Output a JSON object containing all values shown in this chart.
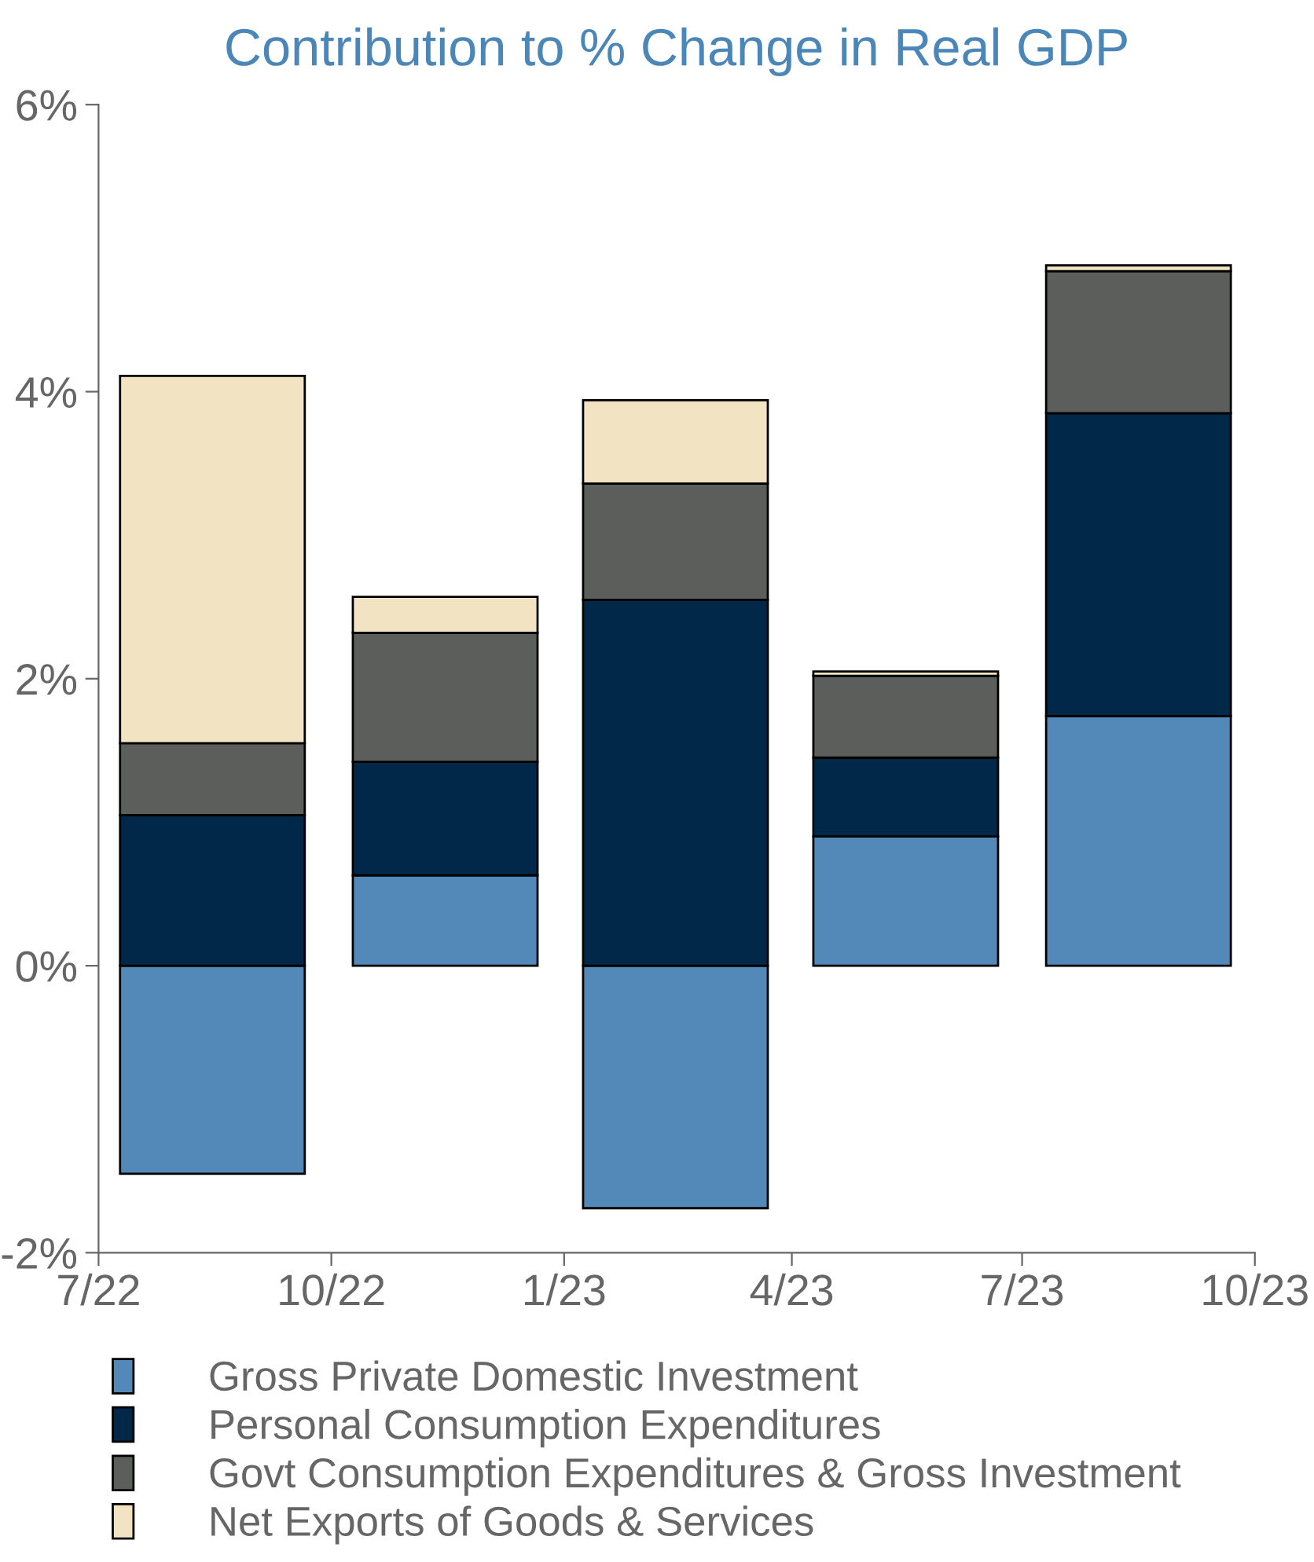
{
  "chart_data": {
    "type": "bar",
    "stacked": true,
    "title": "Contribution to % Change in Real GDP",
    "x": [
      "2022-08-15",
      "2022-11-15",
      "2023-02-14",
      "2023-05-16",
      "2023-08-16"
    ],
    "series": [
      {
        "name": "Gross Private Domestic Investment",
        "color": "#5289b8",
        "values": [
          -1.45,
          0.63,
          -1.69,
          0.9,
          1.74
        ]
      },
      {
        "name": "Personal Consumption Expenditures",
        "color": "#022849",
        "values": [
          1.05,
          0.79,
          2.55,
          0.55,
          2.11
        ]
      },
      {
        "name": "Govt Consumption Expenditures & Gross Investment",
        "color": "#5c5e5b",
        "values": [
          0.5,
          0.9,
          0.81,
          0.57,
          0.99
        ]
      },
      {
        "name": "Net Exports of Goods & Services",
        "color": "#f2e4c2",
        "values": [
          2.56,
          0.25,
          0.58,
          0.03,
          0.04
        ]
      }
    ],
    "xlim": [
      "2022-07-01",
      "2023-10-01"
    ],
    "xticks": [
      {
        "value": "2022-07-01",
        "label": "7/22"
      },
      {
        "value": "2022-10-01",
        "label": "10/22"
      },
      {
        "value": "2023-01-01",
        "label": "1/23"
      },
      {
        "value": "2023-04-01",
        "label": "4/23"
      },
      {
        "value": "2023-07-01",
        "label": "7/23"
      },
      {
        "value": "2023-10-01",
        "label": "10/23"
      }
    ],
    "ylim": [
      -2,
      6
    ],
    "yticks": [
      {
        "value": -2,
        "label": "-2%"
      },
      {
        "value": 0,
        "label": "0%"
      },
      {
        "value": 2,
        "label": "2%"
      },
      {
        "value": 4,
        "label": "4%"
      },
      {
        "value": 6,
        "label": "6%"
      }
    ],
    "grid": false,
    "legend": "bottom"
  }
}
